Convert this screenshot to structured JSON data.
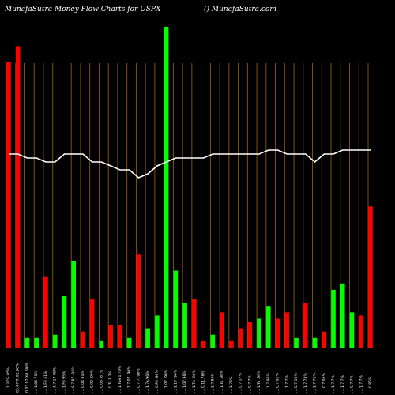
{
  "header": {
    "left": "MunafaSutra  Money Flow  Charts for USPX",
    "right": "() MunafaSutra.com"
  },
  "colors": {
    "background": "#000000",
    "grid": "#8B5A14",
    "up": "#00FF00",
    "down": "#FF0000",
    "price_line": "#FFFFFF"
  },
  "chart_data": {
    "type": "bar",
    "bar_scale": [
      0,
      100
    ],
    "series": [
      {
        "values": [
          89,
          94,
          3,
          3,
          22,
          4,
          16,
          27,
          5,
          15,
          2,
          7,
          7,
          3,
          29,
          6,
          10,
          100,
          24,
          14,
          15,
          2,
          4,
          11,
          2,
          6,
          8,
          9,
          13,
          9,
          11,
          3,
          14,
          3,
          5,
          18,
          20,
          11,
          10,
          44
        ],
        "colors": [
          "down",
          "down",
          "up",
          "up",
          "down",
          "up",
          "up",
          "up",
          "down",
          "down",
          "up",
          "down",
          "down",
          "up",
          "down",
          "up",
          "up",
          "up",
          "up",
          "up",
          "down",
          "down",
          "up",
          "down",
          "down",
          "down",
          "down",
          "up",
          "up",
          "down",
          "down",
          "up",
          "down",
          "up",
          "down",
          "up",
          "up",
          "up",
          "down",
          "down"
        ]
      },
      {
        "type": "line",
        "values": [
          61,
          61,
          60,
          60,
          59,
          59,
          61,
          61,
          61,
          59,
          59,
          58,
          57,
          57,
          55,
          56,
          58,
          59,
          60,
          60,
          60,
          60,
          61,
          61,
          61,
          61,
          61,
          61,
          62,
          62,
          61,
          61,
          61,
          59,
          61,
          61,
          62,
          62,
          62,
          62
        ]
      }
    ],
    "categories": [
      "... 1.27% 05%",
      "03.07.T. 02.96%",
      "0.07.07 Xd .96%",
      "... 1.86 71%",
      "... 1.Fri 41%",
      "... 4.7.17 09%",
      "... 1.Fri 95%",
      "... 0.7.87 .96%",
      "... 0.04 01%",
      "... 0.02 .96%",
      "... 0.06 .81%",
      "... 0.Ts 1.2%",
      "... 1.Tue 1.79%",
      "... 1.7.07 .96%",
      "... 0.7.7 .96%",
      "... 1.7x.96%",
      "... 0.Fri .96%",
      "... 1.07 .96%",
      "... 1.17 .96%",
      "... 1.07.96%",
      "... 1.Tb .96%",
      "... 0.11.76%",
      "... 1.7.85%",
      "... 1.Tu .96%",
      "... 1.76%",
      "... 0.7.17%",
      "... 0.7.7%",
      "... 1.Tu .96%",
      "... 1.7.96%",
      "... 0.7.91%",
      "... 1.7.7%",
      "... 0.7.10%",
      "... 1.7.78%",
      "... 1.7.76%",
      "... 0.7.95%",
      "... 1.7.7%",
      "... 1.7.7%",
      "... 0.7.7%",
      "... 1.7.7%",
      "... 0.85%"
    ]
  }
}
